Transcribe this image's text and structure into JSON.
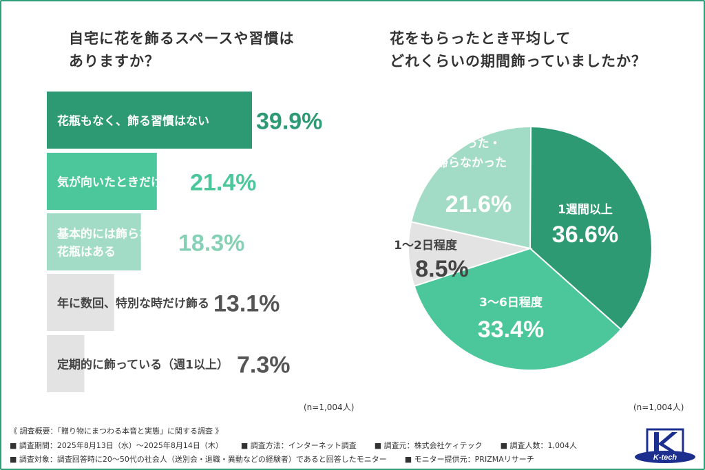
{
  "chart_data": [
    {
      "type": "bar",
      "title": "自宅に花を飾るスペースや習慣は\nありますか？",
      "categories": [
        "花瓶もなく、飾る習慣はない",
        "気が向いたときだけ飾る",
        "基本的には飾らないが\n花瓶はある",
        "年に数回、特別な時だけ飾る",
        "定期的に飾っている（週1以上）"
      ],
      "values": [
        39.9,
        21.4,
        18.3,
        13.1,
        7.3
      ],
      "value_labels": [
        "39.9%",
        "21.4%",
        "18.3%",
        "13.1%",
        "7.3%"
      ],
      "colors": [
        "#2e9a74",
        "#4cc79b",
        "#a2dcc6",
        "#e3e3e3",
        "#e3e3e3"
      ],
      "value_colors": [
        "#2e9a74",
        "#4cc79b",
        "#86d1b5",
        "#555555",
        "#555555"
      ],
      "label_colors": [
        "#ffffff",
        "#ffffff",
        "#ffffff",
        "#444444",
        "#444444"
      ],
      "note": "(n=1,004人)"
    },
    {
      "type": "pie",
      "title": "花をもらったとき平均して\nどれくらいの期間飾っていましたか？",
      "slices": [
        {
          "label": "1週間以上",
          "value": 36.6,
          "text": "36.6%",
          "color": "#2e9a74",
          "text_color": "#ffffff"
        },
        {
          "label": "3〜6日程度",
          "value": 33.4,
          "text": "33.4%",
          "color": "#4cc79b",
          "text_color": "#ffffff"
        },
        {
          "label": "1〜2日程度",
          "value": 8.5,
          "text": "8.5%",
          "color": "#e3e3e3",
          "text_color": "#444444"
        },
        {
          "label": "飾らなかった・\n持ち帰らなかった",
          "value": 21.6,
          "text": "21.6%",
          "color": "#a2dcc6",
          "text_color": "#ffffff"
        }
      ],
      "note": "(n=1,004人)"
    }
  ],
  "footer": {
    "heading": "《 調査概要：「贈り物にまつわる本音と実態」に関する調査 》",
    "line1": [
      "■ 調査期間：2025年8月13日（水）〜2025年8月14日（木）",
      "■ 調査方法：インターネット調査",
      "■ 調査元：株式会社ケィテック",
      "■ 調査人数：1,004人"
    ],
    "line2": [
      "■ 調査対象：調査回答時に20〜50代の社会人（送別会・退職・異動などの経験者）であると回答したモニター",
      "■ モニター提供元：PRIZMAリサーチ"
    ]
  },
  "logo": {
    "text": "K-tech",
    "color": "#1c2f8f"
  }
}
